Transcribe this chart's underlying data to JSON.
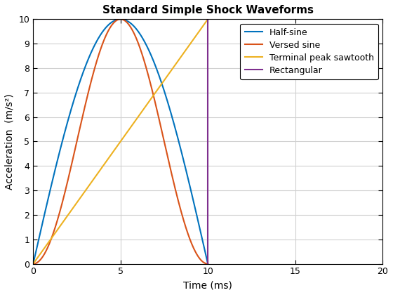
{
  "title": "Standard Simple Shock Waveforms",
  "xlabel": "Time (ms)",
  "ylabel": "Acceleration  (m/s²)",
  "xlim": [
    0,
    20
  ],
  "ylim": [
    0,
    10
  ],
  "peak": 10,
  "duration": 10,
  "colors": {
    "half_sine": "#0072BD",
    "versed_sine": "#D95319",
    "sawtooth": "#EDB120",
    "rectangular": "#7E2F8E"
  },
  "legend_labels": [
    "Half-sine",
    "Versed sine",
    "Terminal peak sawtooth",
    "Rectangular"
  ],
  "linewidth": 1.5,
  "grid": true,
  "background_color": "#FFFFFF",
  "xticks": [
    0,
    5,
    10,
    15,
    20
  ],
  "yticks": [
    0,
    1,
    2,
    3,
    4,
    5,
    6,
    7,
    8,
    9,
    10
  ]
}
